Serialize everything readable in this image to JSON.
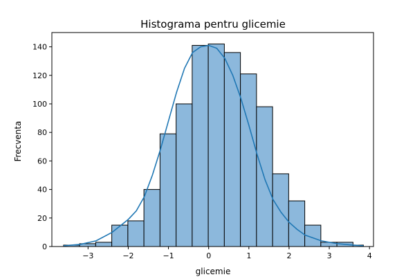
{
  "chart_data": {
    "type": "bar",
    "subtype": "histogram-with-kde",
    "title": "Histograma pentru glicemie",
    "xlabel": "glicemie",
    "ylabel": "Frecventa",
    "xlim": [
      -3.9,
      4.1
    ],
    "ylim": [
      0,
      150
    ],
    "xticks": [
      -3,
      -2,
      -1,
      0,
      1,
      2,
      3,
      4
    ],
    "xtick_labels": [
      "−3",
      "−2",
      "−1",
      "0",
      "1",
      "2",
      "3",
      "4"
    ],
    "yticks": [
      0,
      20,
      40,
      60,
      80,
      100,
      120,
      140
    ],
    "ytick_labels": [
      "0",
      "20",
      "40",
      "60",
      "80",
      "100",
      "120",
      "140"
    ],
    "bins": [
      {
        "x0": -3.61,
        "x1": -3.21,
        "count": 1
      },
      {
        "x0": -3.21,
        "x1": -2.81,
        "count": 2
      },
      {
        "x0": -2.81,
        "x1": -2.41,
        "count": 3
      },
      {
        "x0": -2.41,
        "x1": -2.01,
        "count": 15
      },
      {
        "x0": -2.01,
        "x1": -1.61,
        "count": 18
      },
      {
        "x0": -1.61,
        "x1": -1.21,
        "count": 40
      },
      {
        "x0": -1.21,
        "x1": -0.81,
        "count": 79
      },
      {
        "x0": -0.81,
        "x1": -0.41,
        "count": 100
      },
      {
        "x0": -0.41,
        "x1": -0.01,
        "count": 141
      },
      {
        "x0": -0.01,
        "x1": 0.39,
        "count": 142
      },
      {
        "x0": 0.39,
        "x1": 0.79,
        "count": 136
      },
      {
        "x0": 0.79,
        "x1": 1.19,
        "count": 121
      },
      {
        "x0": 1.19,
        "x1": 1.59,
        "count": 98
      },
      {
        "x0": 1.59,
        "x1": 1.99,
        "count": 51
      },
      {
        "x0": 1.99,
        "x1": 2.39,
        "count": 32
      },
      {
        "x0": 2.39,
        "x1": 2.79,
        "count": 15
      },
      {
        "x0": 2.79,
        "x1": 3.19,
        "count": 3
      },
      {
        "x0": 3.19,
        "x1": 3.59,
        "count": 3
      },
      {
        "x0": 3.59,
        "x1": 3.85,
        "count": 1
      }
    ],
    "kde": {
      "x": [
        -3.61,
        -3.2,
        -2.8,
        -2.4,
        -2.0,
        -1.8,
        -1.6,
        -1.4,
        -1.2,
        -1.0,
        -0.8,
        -0.6,
        -0.4,
        -0.2,
        0.0,
        0.2,
        0.4,
        0.6,
        0.8,
        1.0,
        1.2,
        1.4,
        1.6,
        1.8,
        2.0,
        2.2,
        2.4,
        2.8,
        3.2,
        3.6,
        3.85
      ],
      "y": [
        0.5,
        1.5,
        4,
        10,
        19,
        25,
        35,
        50,
        68,
        88,
        108,
        125,
        136,
        140,
        141,
        139,
        132,
        120,
        104,
        85,
        65,
        47,
        33,
        24,
        17,
        12,
        8,
        4,
        2,
        1,
        0.5
      ]
    },
    "colors": {
      "bar_fill": "#8cb8dc",
      "bar_edge": "#000000",
      "kde_line": "#1f77b4"
    },
    "grid": false,
    "legend": "none"
  }
}
